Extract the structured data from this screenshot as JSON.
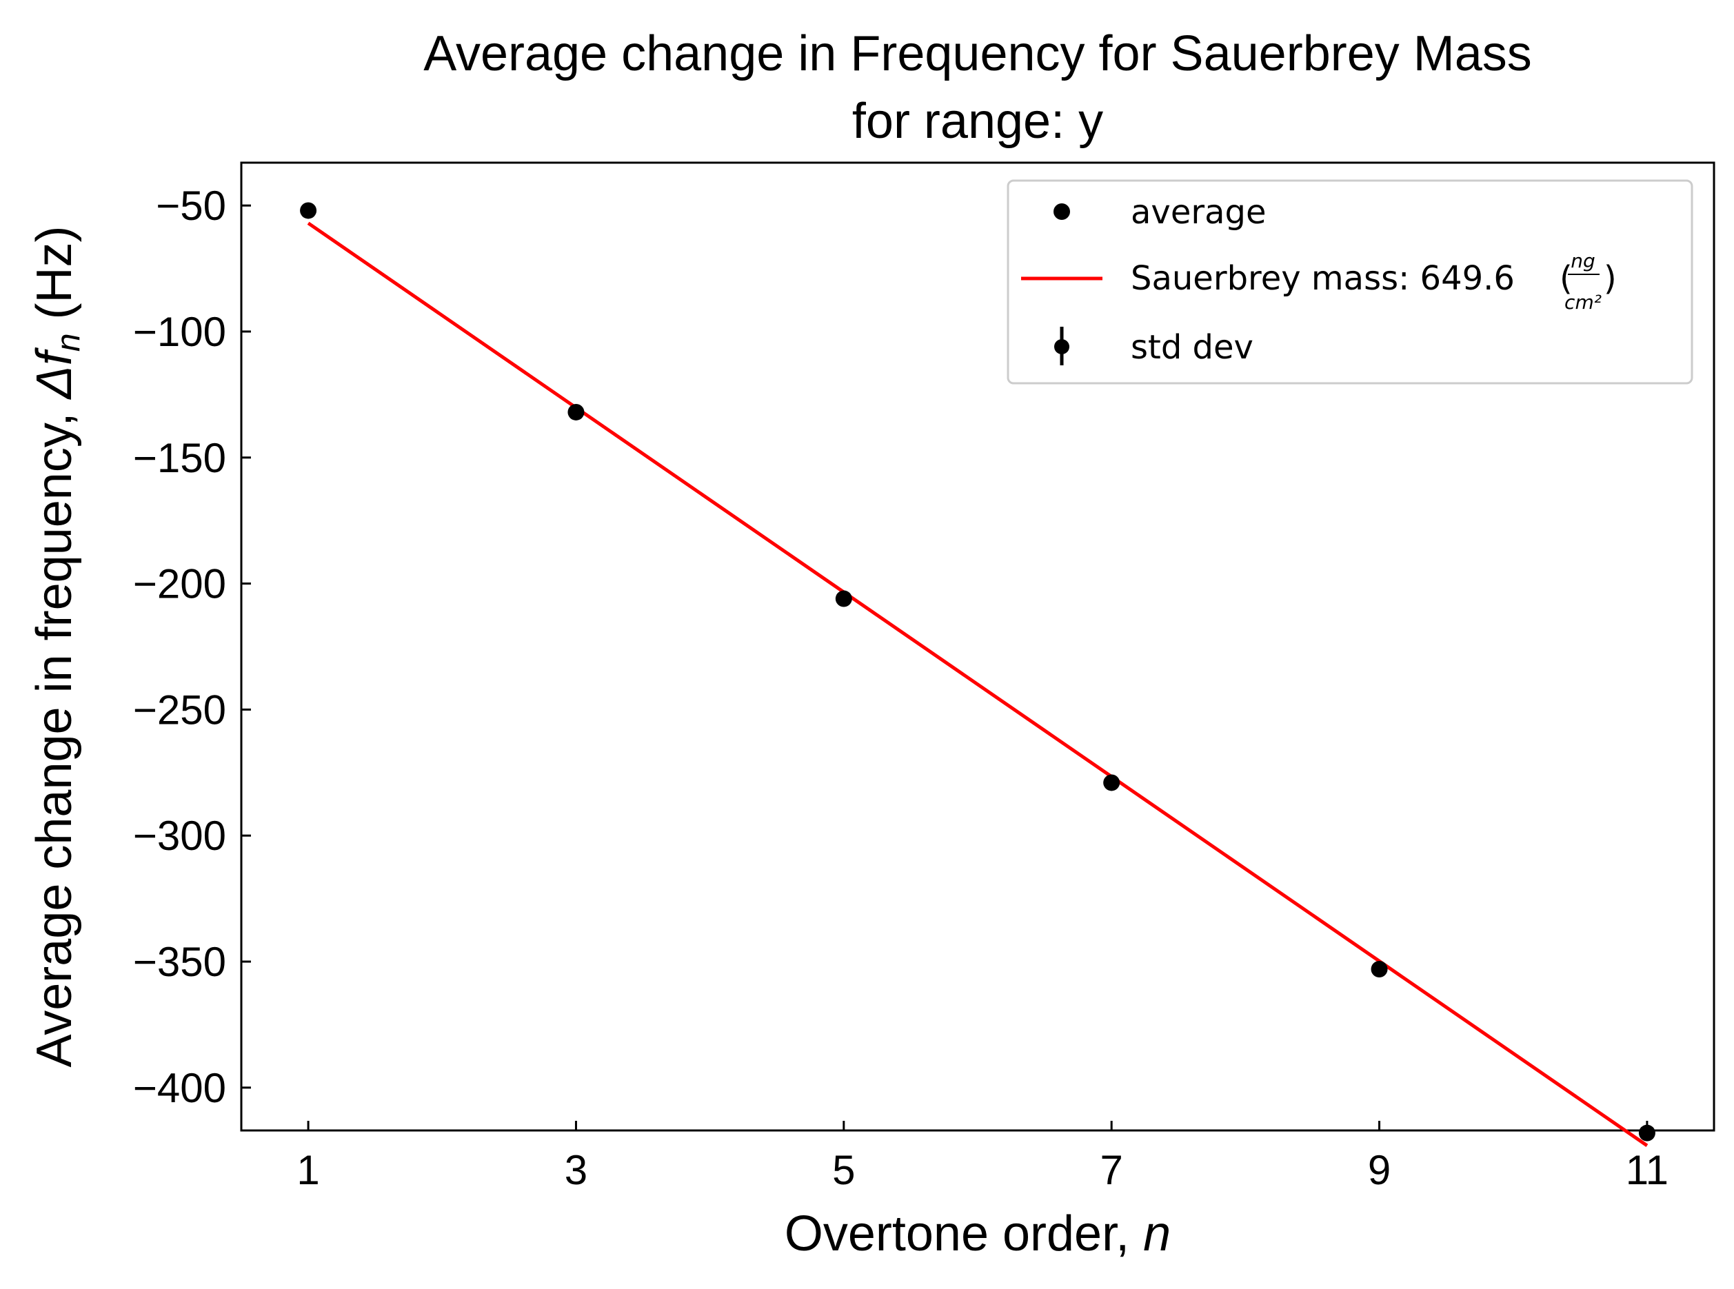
{
  "chart_data": {
    "type": "scatter",
    "title_line1": "Average change in Frequency for Sauerbrey Mass",
    "title_line2": "for range: y",
    "xlabel_text": "Overtone order, ",
    "xlabel_var": "n",
    "ylabel_text": "Average change in frequency, ",
    "ylabel_var": "Δf",
    "ylabel_sub": "n",
    "ylabel_unit": " (Hz)",
    "xlim": [
      0.5,
      11.5
    ],
    "ylim": [
      -417,
      -33
    ],
    "xticks": [
      1,
      3,
      5,
      7,
      9,
      11
    ],
    "xtick_labels": [
      "1",
      "3",
      "5",
      "7",
      "9",
      "11"
    ],
    "yticks": [
      -50,
      -100,
      -150,
      -200,
      -250,
      -300,
      -350,
      -400
    ],
    "ytick_labels": [
      "−50",
      "−100",
      "−150",
      "−200",
      "−250",
      "−300",
      "−350",
      "−400"
    ],
    "grid": false,
    "legend_placement": "top-right",
    "series": [
      {
        "name": "average",
        "kind": "points",
        "color": "#000000",
        "x": [
          1,
          3,
          5,
          7,
          9,
          11
        ],
        "y": [
          -52,
          -132,
          -206,
          -279,
          -353,
          -418
        ]
      },
      {
        "name": "Sauerbrey mass: 649.6",
        "unit_numerator": "ng",
        "unit_denominator": "cm²",
        "kind": "line",
        "color": "#ff0000",
        "x": [
          1,
          11
        ],
        "y": [
          -57,
          -423
        ]
      },
      {
        "name": "std dev",
        "kind": "errorbar",
        "color": "#000000",
        "x": [
          1,
          3,
          5,
          7,
          9,
          11
        ],
        "y": [
          -52,
          -132,
          -206,
          -279,
          -353,
          -418
        ],
        "err": [
          0,
          0,
          0,
          0,
          0,
          0
        ]
      }
    ]
  }
}
